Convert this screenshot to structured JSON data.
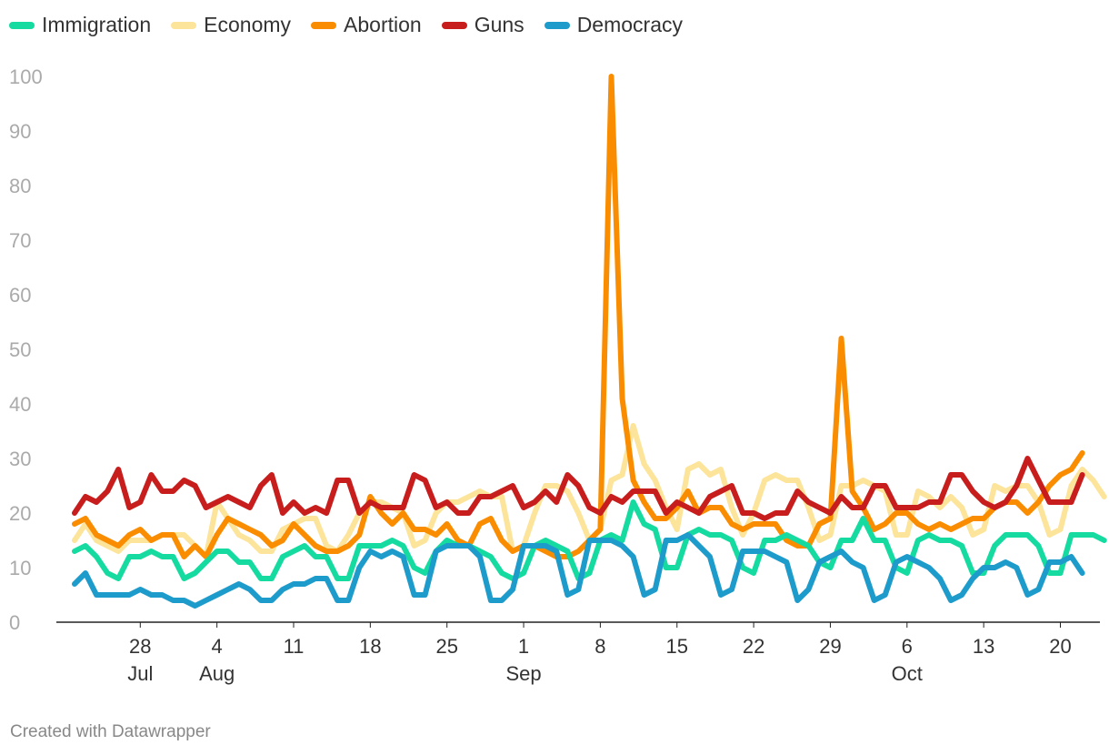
{
  "chart_data": {
    "type": "line",
    "title": "",
    "xlabel": "",
    "ylabel": "",
    "ylim": [
      0,
      100
    ],
    "y_ticks": [
      0,
      10,
      20,
      30,
      40,
      50,
      60,
      70,
      80,
      90,
      100
    ],
    "grid": false,
    "legend_position": "top-left",
    "x_start_day": 0,
    "x_ticks": [
      {
        "day": 6,
        "label": "28",
        "month": "Jul"
      },
      {
        "day": 13,
        "label": "4",
        "month": "Aug"
      },
      {
        "day": 20,
        "label": "11",
        "month": ""
      },
      {
        "day": 27,
        "label": "18",
        "month": ""
      },
      {
        "day": 34,
        "label": "25",
        "month": ""
      },
      {
        "day": 41,
        "label": "1",
        "month": "Sep"
      },
      {
        "day": 48,
        "label": "8",
        "month": ""
      },
      {
        "day": 55,
        "label": "15",
        "month": ""
      },
      {
        "day": 62,
        "label": "22",
        "month": ""
      },
      {
        "day": 69,
        "label": "29",
        "month": ""
      },
      {
        "day": 76,
        "label": "6",
        "month": "Oct"
      },
      {
        "day": 83,
        "label": "13",
        "month": ""
      },
      {
        "day": 90,
        "label": "20",
        "month": ""
      }
    ],
    "series": [
      {
        "name": "Economy",
        "color": "#fde49b",
        "values": [
          15,
          18,
          15,
          14,
          13,
          15,
          15,
          15,
          16,
          16,
          16,
          14,
          12,
          22,
          19,
          16,
          15,
          13,
          13,
          17,
          18,
          19,
          19,
          14,
          13,
          16,
          20,
          22,
          22,
          21,
          20,
          14,
          15,
          20,
          22,
          22,
          23,
          24,
          23,
          23,
          13,
          14,
          20,
          25,
          25,
          24,
          20,
          15,
          17,
          26,
          27,
          36,
          29,
          26,
          21,
          17,
          28,
          29,
          27,
          28,
          21,
          16,
          20,
          26,
          27,
          26,
          26,
          21,
          15,
          16,
          25,
          25,
          26,
          25,
          24,
          16,
          16,
          24,
          23,
          21,
          23,
          21,
          16,
          17,
          25,
          24,
          25,
          25,
          22,
          16,
          17,
          25,
          28,
          26,
          23
        ]
      },
      {
        "name": "Abortion",
        "color": "#fa8c00",
        "values": [
          18,
          19,
          16,
          15,
          14,
          16,
          17,
          15,
          16,
          16,
          12,
          14,
          12,
          16,
          19,
          18,
          17,
          16,
          14,
          15,
          18,
          16,
          14,
          13,
          13,
          14,
          16,
          23,
          20,
          18,
          20,
          17,
          17,
          16,
          18,
          15,
          14,
          18,
          19,
          15,
          13,
          14,
          14,
          13,
          12,
          12,
          13,
          15,
          17,
          100,
          41,
          26,
          22,
          19,
          19,
          21,
          24,
          20,
          21,
          21,
          18,
          17,
          18,
          18,
          18,
          15,
          14,
          14,
          18,
          19,
          52,
          24,
          21,
          17,
          18,
          20,
          20,
          18,
          17,
          18,
          17,
          18,
          19,
          19,
          21,
          22,
          22,
          20,
          22,
          25,
          27,
          28,
          31
        ]
      },
      {
        "name": "Immigration",
        "color": "#15dba1",
        "values": [
          13,
          14,
          12,
          9,
          8,
          12,
          12,
          13,
          12,
          12,
          8,
          9,
          11,
          13,
          13,
          11,
          11,
          8,
          8,
          12,
          13,
          14,
          12,
          12,
          8,
          8,
          14,
          14,
          14,
          15,
          14,
          10,
          9,
          13,
          15,
          14,
          14,
          13,
          12,
          9,
          8,
          9,
          14,
          15,
          14,
          13,
          8,
          9,
          15,
          16,
          15,
          22,
          18,
          17,
          10,
          10,
          16,
          17,
          16,
          16,
          15,
          10,
          9,
          15,
          15,
          16,
          15,
          14,
          11,
          10,
          15,
          15,
          19,
          15,
          15,
          10,
          9,
          15,
          16,
          15,
          15,
          14,
          9,
          9,
          14,
          16,
          16,
          16,
          14,
          9,
          9,
          16,
          16,
          16,
          15
        ]
      },
      {
        "name": "Guns",
        "color": "#c71e1d",
        "values": [
          20,
          23,
          22,
          24,
          28,
          21,
          22,
          27,
          24,
          24,
          26,
          25,
          21,
          22,
          23,
          22,
          21,
          25,
          27,
          20,
          22,
          20,
          21,
          20,
          26,
          26,
          20,
          22,
          21,
          21,
          21,
          27,
          26,
          21,
          22,
          20,
          20,
          23,
          23,
          24,
          25,
          21,
          22,
          24,
          22,
          27,
          25,
          21,
          20,
          23,
          22,
          24,
          24,
          24,
          20,
          22,
          21,
          20,
          23,
          24,
          25,
          20,
          20,
          19,
          20,
          20,
          24,
          22,
          21,
          20,
          23,
          21,
          21,
          25,
          25,
          21,
          21,
          21,
          22,
          22,
          27,
          27,
          24,
          22,
          21,
          22,
          25,
          30,
          26,
          22,
          22,
          22,
          27
        ]
      },
      {
        "name": "Democracy",
        "color": "#1d9bcb",
        "values": [
          7,
          9,
          5,
          5,
          5,
          5,
          6,
          5,
          5,
          4,
          4,
          3,
          4,
          5,
          6,
          7,
          6,
          4,
          4,
          6,
          7,
          7,
          8,
          8,
          4,
          4,
          10,
          13,
          12,
          13,
          12,
          5,
          5,
          13,
          14,
          14,
          14,
          12,
          4,
          4,
          6,
          14,
          14,
          14,
          13,
          5,
          6,
          15,
          15,
          15,
          14,
          12,
          5,
          6,
          15,
          15,
          16,
          14,
          12,
          5,
          6,
          13,
          13,
          13,
          12,
          11,
          4,
          6,
          11,
          12,
          13,
          11,
          10,
          4,
          5,
          11,
          12,
          11,
          10,
          8,
          4,
          5,
          8,
          10,
          10,
          11,
          10,
          5,
          6,
          11,
          11,
          12,
          9
        ]
      }
    ]
  },
  "legend": {
    "items": [
      {
        "label": "Immigration",
        "color": "#15dba1"
      },
      {
        "label": "Economy",
        "color": "#fde49b"
      },
      {
        "label": "Abortion",
        "color": "#fa8c00"
      },
      {
        "label": "Guns",
        "color": "#c71e1d"
      },
      {
        "label": "Democracy",
        "color": "#1d9bcb"
      }
    ]
  },
  "footer": {
    "credit": "Created with Datawrapper"
  }
}
